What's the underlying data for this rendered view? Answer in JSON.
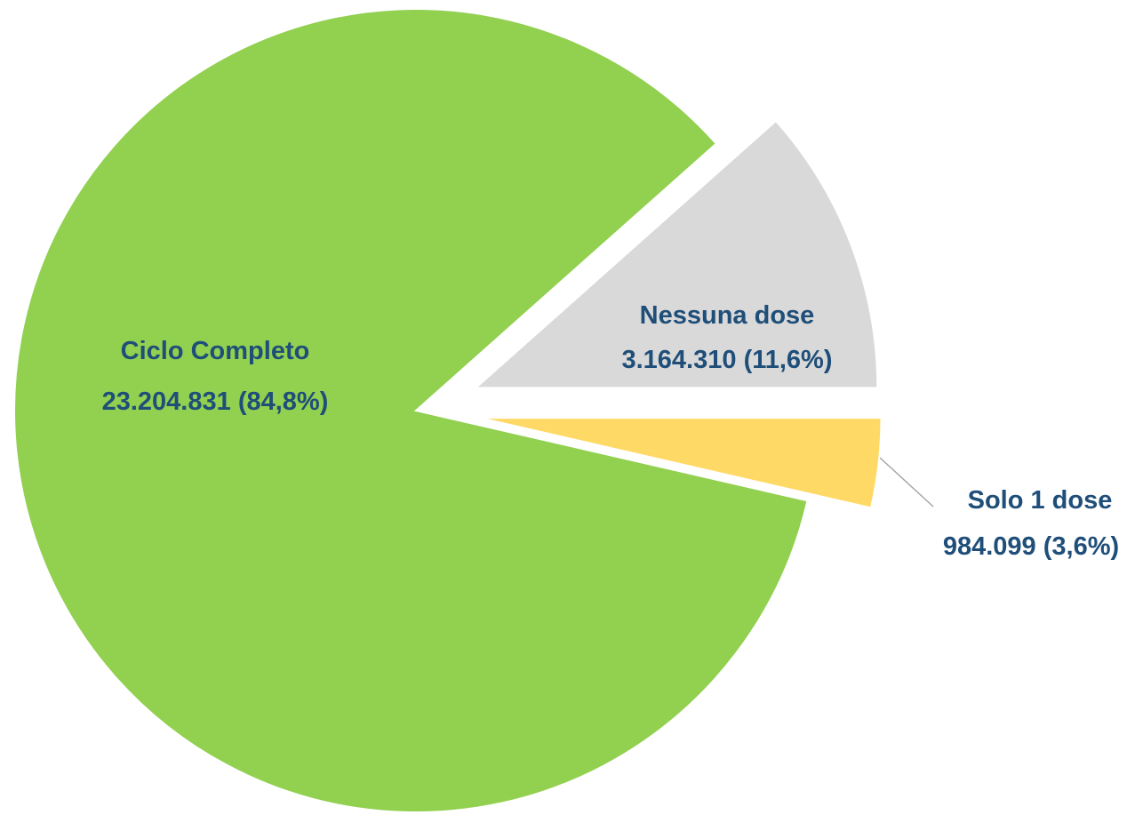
{
  "chart_data": {
    "type": "pie",
    "legend": "none",
    "slices": [
      {
        "category": "Ciclo Completo",
        "value": 23204831,
        "value_label": "23.204.831",
        "percent": 84.8,
        "percent_label": "(84,8%)",
        "color": "#92d050",
        "exploded": false
      },
      {
        "category": "Nessuna dose",
        "value": 3164310,
        "value_label": "3.164.310",
        "percent": 11.6,
        "percent_label": "(11,6%)",
        "color": "#d9d9d9",
        "exploded": true
      },
      {
        "category": "Solo 1 dose",
        "value": 984099,
        "value_label": "984.099",
        "percent": 3.6,
        "percent_label": "(3,6%)",
        "color": "#ffd966",
        "exploded": true
      }
    ],
    "label_color": "#1f4e79",
    "leader_line_color": "#a6a6a6"
  }
}
